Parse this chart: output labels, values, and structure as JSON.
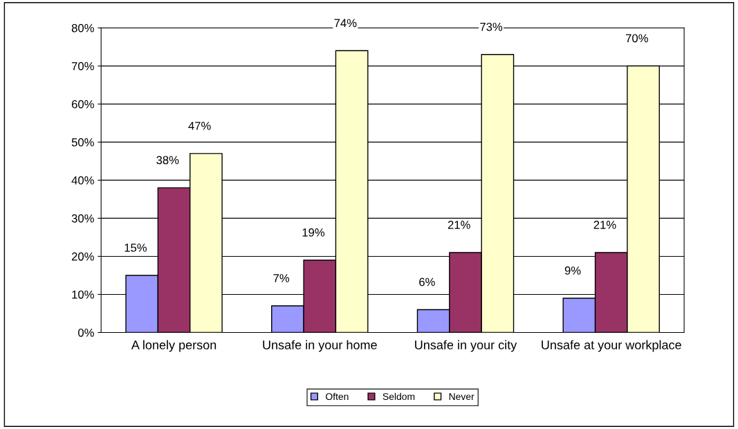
{
  "chart_data": {
    "type": "bar",
    "categories": [
      "A lonely person",
      "Unsafe in your home",
      "Unsafe in your city",
      "Unsafe at your workplace"
    ],
    "series": [
      {
        "name": "Often",
        "color": "#9999ff",
        "values": [
          15,
          7,
          6,
          9
        ],
        "value_labels": [
          "15%",
          "7%",
          "6%",
          "9%"
        ]
      },
      {
        "name": "Seldom",
        "color": "#993366",
        "values": [
          38,
          19,
          21,
          21
        ],
        "value_labels": [
          "38%",
          "19%",
          "21%",
          "21%"
        ]
      },
      {
        "name": "Never",
        "color": "#ffffcc",
        "values": [
          47,
          74,
          73,
          70
        ],
        "value_labels": [
          "47%",
          "74%",
          "73%",
          "70%"
        ]
      }
    ],
    "ylim": [
      0,
      80
    ],
    "yticks": [
      {
        "value": 0,
        "label": "0%"
      },
      {
        "value": 10,
        "label": "10%"
      },
      {
        "value": 20,
        "label": "20%"
      },
      {
        "value": 30,
        "label": "30%"
      },
      {
        "value": 40,
        "label": "40%"
      },
      {
        "value": 50,
        "label": "50%"
      },
      {
        "value": 60,
        "label": "60%"
      },
      {
        "value": 70,
        "label": "70%"
      },
      {
        "value": 80,
        "label": "80%"
      }
    ],
    "grid": "y",
    "legend": "bottom"
  }
}
